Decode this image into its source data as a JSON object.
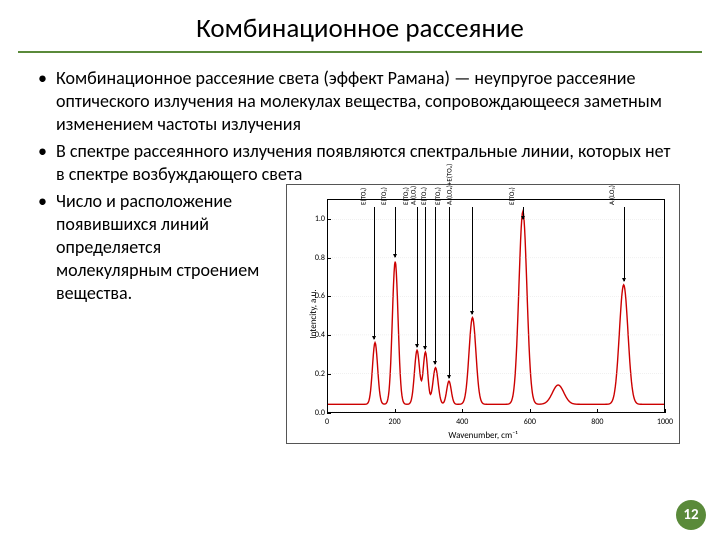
{
  "title": "Комбинационное рассеяние",
  "bullets": {
    "b1": "Комбинационное рассеяние света (эффект Рамана) — неупругое рассеяние оптического излучения на молекулах вещества, сопровождающееся заметным изменением частоты излучения",
    "b2": "В спектре рассеянного излучения появляются спектральные линии, которых нет в спектре возбуждающего света",
    "b3": "Число и расположение появившихся линий определяется молекулярным строением вещества."
  },
  "page_number": "12",
  "chart": {
    "type": "line",
    "xlabel": "Wavenumber, cm⁻¹",
    "ylabel": "Intencity, a.u.",
    "xlim": [
      0,
      1000
    ],
    "ylim": [
      0.0,
      1.1
    ],
    "xticks": [
      0,
      200,
      400,
      600,
      800,
      1000
    ],
    "yticks": [
      0.0,
      0.2,
      0.4,
      0.6,
      0.8,
      1.0
    ],
    "line_color": "#cc0000",
    "line_width": 1.4,
    "grid_color": "#cfcfcf",
    "background_color": "#ffffff",
    "peaks": [
      {
        "x": 140,
        "h": 0.32,
        "w": 18,
        "label": "E(TO₁)"
      },
      {
        "x": 200,
        "h": 0.74,
        "w": 20,
        "label": "E(TO₂)"
      },
      {
        "x": 265,
        "h": 0.28,
        "w": 18,
        "label": "E(TO₃)"
      },
      {
        "x": 290,
        "h": 0.27,
        "w": 16,
        "label": "A₁(LO₁)"
      },
      {
        "x": 320,
        "h": 0.19,
        "w": 18,
        "label": "E(TO₄)"
      },
      {
        "x": 360,
        "h": 0.12,
        "w": 16,
        "label": "E(TO₅)"
      },
      {
        "x": 430,
        "h": 0.45,
        "w": 24,
        "label": "A₁(LO₂)+E(TO₆)"
      },
      {
        "x": 580,
        "h": 1.0,
        "w": 28,
        "label": "E(TO₇)"
      },
      {
        "x": 685,
        "h": 0.1,
        "w": 40,
        "label": ""
      },
      {
        "x": 880,
        "h": 0.62,
        "w": 30,
        "label": "A₁(LO₃)"
      }
    ]
  }
}
